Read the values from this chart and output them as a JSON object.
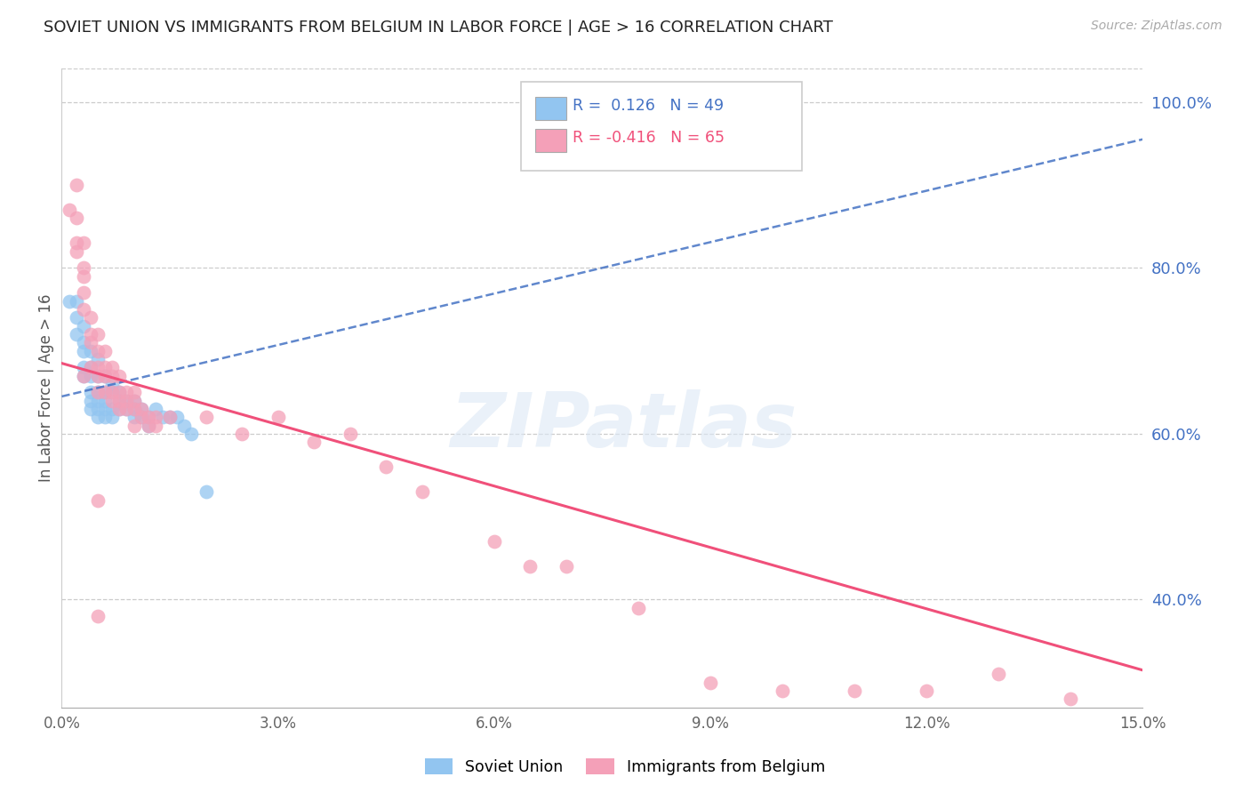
{
  "title": "SOVIET UNION VS IMMIGRANTS FROM BELGIUM IN LABOR FORCE | AGE > 16 CORRELATION CHART",
  "source": "Source: ZipAtlas.com",
  "ylabel": "In Labor Force | Age > 16",
  "xlim": [
    0.0,
    0.15
  ],
  "ylim": [
    0.27,
    1.04
  ],
  "xticks": [
    0.0,
    0.03,
    0.06,
    0.09,
    0.12,
    0.15
  ],
  "xticklabels": [
    "0.0%",
    "3.0%",
    "6.0%",
    "9.0%",
    "12.0%",
    "15.0%"
  ],
  "yticks_right": [
    0.4,
    0.6,
    0.8,
    1.0
  ],
  "ytick_right_labels": [
    "40.0%",
    "60.0%",
    "80.0%",
    "100.0%"
  ],
  "color_soviet": "#92C5F0",
  "color_belgium": "#F4A0B8",
  "color_trend_soviet": "#4472C4",
  "color_trend_belgium": "#F0507A",
  "color_title": "#222222",
  "color_right_axis": "#4472C4",
  "watermark_text": "ZIPatlas",
  "soviet_x": [
    0.001,
    0.002,
    0.002,
    0.002,
    0.003,
    0.003,
    0.003,
    0.003,
    0.003,
    0.004,
    0.004,
    0.004,
    0.004,
    0.004,
    0.004,
    0.005,
    0.005,
    0.005,
    0.005,
    0.005,
    0.005,
    0.006,
    0.006,
    0.006,
    0.006,
    0.006,
    0.007,
    0.007,
    0.007,
    0.007,
    0.008,
    0.008,
    0.008,
    0.009,
    0.009,
    0.01,
    0.01,
    0.01,
    0.011,
    0.011,
    0.012,
    0.012,
    0.013,
    0.014,
    0.015,
    0.016,
    0.017,
    0.018,
    0.02
  ],
  "soviet_y": [
    0.76,
    0.76,
    0.74,
    0.72,
    0.73,
    0.71,
    0.7,
    0.68,
    0.67,
    0.7,
    0.68,
    0.67,
    0.65,
    0.64,
    0.63,
    0.69,
    0.67,
    0.65,
    0.64,
    0.63,
    0.62,
    0.67,
    0.65,
    0.64,
    0.63,
    0.62,
    0.66,
    0.65,
    0.63,
    0.62,
    0.65,
    0.64,
    0.63,
    0.64,
    0.63,
    0.64,
    0.63,
    0.62,
    0.63,
    0.62,
    0.62,
    0.61,
    0.63,
    0.62,
    0.62,
    0.62,
    0.61,
    0.6,
    0.53
  ],
  "belgium_x": [
    0.001,
    0.002,
    0.002,
    0.003,
    0.003,
    0.003,
    0.003,
    0.003,
    0.004,
    0.004,
    0.004,
    0.004,
    0.005,
    0.005,
    0.005,
    0.005,
    0.005,
    0.006,
    0.006,
    0.006,
    0.006,
    0.007,
    0.007,
    0.007,
    0.007,
    0.008,
    0.008,
    0.008,
    0.008,
    0.009,
    0.009,
    0.009,
    0.01,
    0.01,
    0.01,
    0.01,
    0.011,
    0.011,
    0.012,
    0.012,
    0.013,
    0.013,
    0.015,
    0.02,
    0.025,
    0.03,
    0.035,
    0.04,
    0.045,
    0.05,
    0.06,
    0.065,
    0.07,
    0.08,
    0.09,
    0.1,
    0.11,
    0.12,
    0.13,
    0.14,
    0.002,
    0.002,
    0.003,
    0.005,
    0.005
  ],
  "belgium_y": [
    0.87,
    0.9,
    0.82,
    0.83,
    0.8,
    0.79,
    0.77,
    0.75,
    0.74,
    0.72,
    0.71,
    0.68,
    0.72,
    0.7,
    0.68,
    0.67,
    0.65,
    0.7,
    0.68,
    0.67,
    0.65,
    0.68,
    0.67,
    0.65,
    0.64,
    0.67,
    0.65,
    0.64,
    0.63,
    0.65,
    0.64,
    0.63,
    0.65,
    0.64,
    0.63,
    0.61,
    0.63,
    0.62,
    0.62,
    0.61,
    0.62,
    0.61,
    0.62,
    0.62,
    0.6,
    0.62,
    0.59,
    0.6,
    0.56,
    0.53,
    0.47,
    0.44,
    0.44,
    0.39,
    0.3,
    0.29,
    0.29,
    0.29,
    0.31,
    0.28,
    0.86,
    0.83,
    0.67,
    0.52,
    0.38
  ]
}
